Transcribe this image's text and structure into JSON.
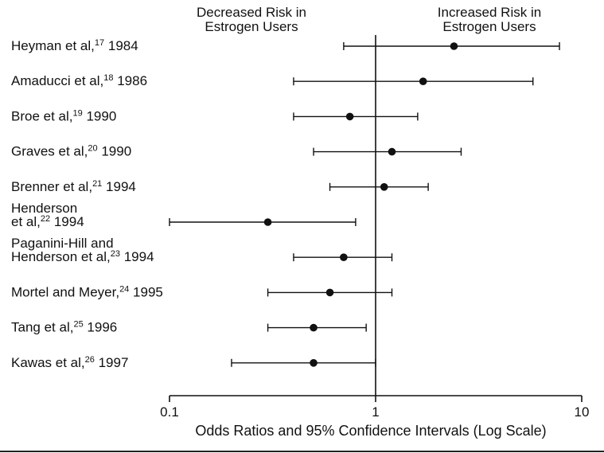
{
  "chart_data": {
    "type": "scatter",
    "subtype": "forest-plot",
    "x_scale": "log",
    "xlim": [
      0.1,
      10
    ],
    "xlabel": "Odds Ratios and 95% Confidence Intervals (Log Scale)",
    "x_ticks": [
      "0.1",
      "1",
      "10"
    ],
    "reference_line": 1,
    "headers": {
      "left": [
        "Decreased Risk in",
        "Estrogen Users"
      ],
      "right": [
        "Increased Risk in",
        "Estrogen Users"
      ]
    },
    "studies": [
      {
        "label": [
          "Heyman et al,|17| 1984"
        ],
        "or": 2.4,
        "low": 0.7,
        "high": 7.8
      },
      {
        "label": [
          "Amaducci et al,|18| 1986"
        ],
        "or": 1.7,
        "low": 0.4,
        "high": 5.8
      },
      {
        "label": [
          "Broe et al,|19| 1990"
        ],
        "or": 0.75,
        "low": 0.4,
        "high": 1.6
      },
      {
        "label": [
          "Graves et al,|20| 1990"
        ],
        "or": 1.2,
        "low": 0.5,
        "high": 2.6
      },
      {
        "label": [
          "Brenner et al,|21| 1994"
        ],
        "or": 1.1,
        "low": 0.6,
        "high": 1.8
      },
      {
        "label": [
          "Henderson",
          " et al,|22| 1994"
        ],
        "or": 0.3,
        "low": 0.1,
        "high": 0.8
      },
      {
        "label": [
          "Paganini-Hill and",
          "  Henderson et al,|23| 1994"
        ],
        "or": 0.7,
        "low": 0.4,
        "high": 1.2
      },
      {
        "label": [
          "Mortel and Meyer,|24| 1995"
        ],
        "or": 0.6,
        "low": 0.3,
        "high": 1.2
      },
      {
        "label": [
          "Tang et al,|25| 1996"
        ],
        "or": 0.5,
        "low": 0.3,
        "high": 0.9
      },
      {
        "label": [
          "Kawas et al,|26| 1997"
        ],
        "or": 0.5,
        "low": 0.2,
        "high": 1.0
      }
    ]
  }
}
